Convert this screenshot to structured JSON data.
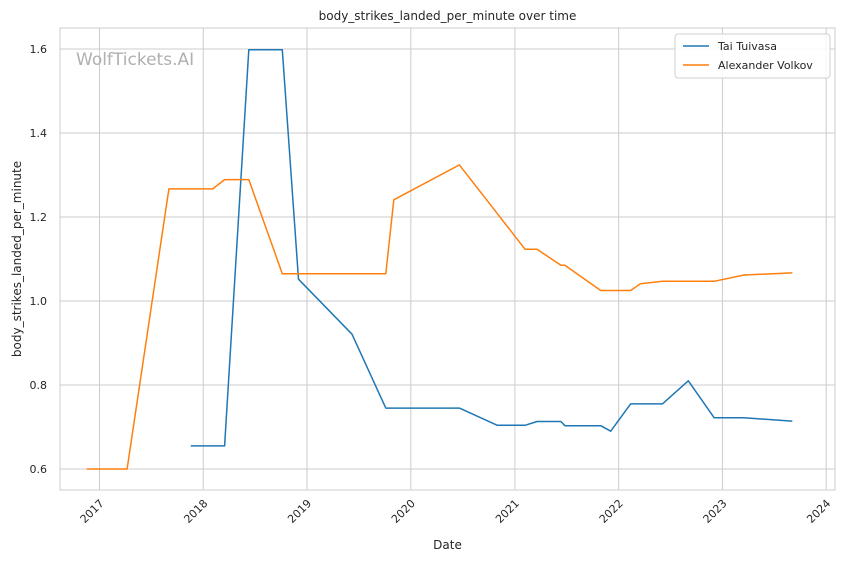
{
  "chart_data": {
    "type": "line",
    "title": "body_strikes_landed_per_minute over time",
    "xlabel": "Date",
    "ylabel": "body_strikes_landed_per_minute",
    "watermark": "WolfTickets.AI",
    "xlim": [
      "2016-08-15",
      "2024-02-01"
    ],
    "ylim": [
      0.55,
      1.65
    ],
    "x_ticks": [
      "2017-01-01",
      "2018-01-01",
      "2019-01-01",
      "2020-01-01",
      "2021-01-01",
      "2022-01-01",
      "2023-01-01",
      "2024-01-01"
    ],
    "x_tick_labels": [
      "2017",
      "2018",
      "2019",
      "2020",
      "2021",
      "2022",
      "2023",
      "2024"
    ],
    "y_ticks": [
      0.6,
      0.8,
      1.0,
      1.2,
      1.4,
      1.6
    ],
    "y_tick_labels": [
      "0.6",
      "0.8",
      "1.0",
      "1.2",
      "1.4",
      "1.6"
    ],
    "grid": true,
    "legend_position": "top-right",
    "series": [
      {
        "name": "Tai Tuivasa",
        "color": "#1f77b4",
        "points": [
          [
            "2017-11-20",
            0.655
          ],
          [
            "2018-03-17",
            0.655
          ],
          [
            "2018-06-10",
            1.598
          ],
          [
            "2018-10-06",
            1.598
          ],
          [
            "2018-12-02",
            1.052
          ],
          [
            "2019-06-08",
            0.921
          ],
          [
            "2019-10-05",
            0.745
          ],
          [
            "2020-06-20",
            0.745
          ],
          [
            "2020-10-31",
            0.704
          ],
          [
            "2021-02-06",
            0.704
          ],
          [
            "2021-03-20",
            0.713
          ],
          [
            "2021-06-12",
            0.713
          ],
          [
            "2021-06-26",
            0.703
          ],
          [
            "2021-10-30",
            0.703
          ],
          [
            "2021-12-04",
            0.69
          ],
          [
            "2022-02-12",
            0.755
          ],
          [
            "2022-06-04",
            0.755
          ],
          [
            "2022-09-03",
            0.81
          ],
          [
            "2022-12-03",
            0.722
          ],
          [
            "2023-03-18",
            0.722
          ],
          [
            "2023-09-02",
            0.714
          ]
        ]
      },
      {
        "name": "Alexander Volkov",
        "color": "#ff7f0e",
        "points": [
          [
            "2016-11-19",
            0.6
          ],
          [
            "2017-04-08",
            0.6
          ],
          [
            "2017-09-02",
            1.267
          ],
          [
            "2018-02-03",
            1.267
          ],
          [
            "2018-03-17",
            1.289
          ],
          [
            "2018-06-10",
            1.289
          ],
          [
            "2018-10-06",
            1.065
          ],
          [
            "2019-10-05",
            1.065
          ],
          [
            "2019-11-02",
            1.241
          ],
          [
            "2020-06-20",
            1.324
          ],
          [
            "2020-10-31",
            1.208
          ],
          [
            "2021-02-06",
            1.123
          ],
          [
            "2021-03-20",
            1.123
          ],
          [
            "2021-06-12",
            1.085
          ],
          [
            "2021-06-26",
            1.085
          ],
          [
            "2021-10-30",
            1.025
          ],
          [
            "2022-02-12",
            1.025
          ],
          [
            "2022-03-19",
            1.041
          ],
          [
            "2022-06-04",
            1.047
          ],
          [
            "2022-12-03",
            1.047
          ],
          [
            "2023-03-18",
            1.062
          ],
          [
            "2023-09-02",
            1.067
          ]
        ]
      }
    ]
  }
}
